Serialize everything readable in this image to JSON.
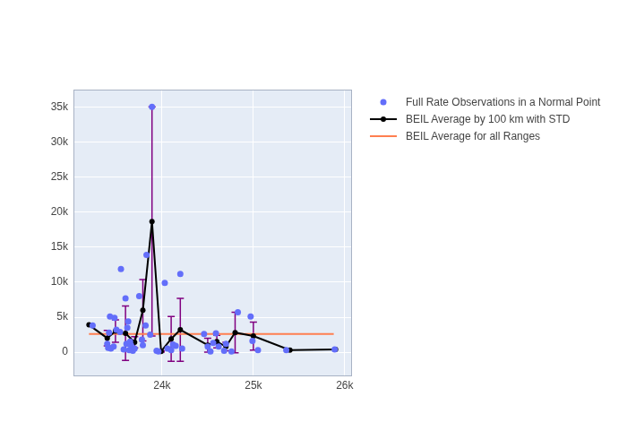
{
  "chart_data": {
    "type": "scatter",
    "xlim": [
      23030,
      26080
    ],
    "ylim": [
      -3460,
      37560
    ],
    "xticks": [
      {
        "value": 24000,
        "label": "24k"
      },
      {
        "value": 25000,
        "label": "25k"
      },
      {
        "value": 26000,
        "label": "26k"
      }
    ],
    "yticks": [
      0,
      {
        "value": 5000,
        "label": "5k"
      },
      {
        "value": 10000,
        "label": "10k"
      },
      {
        "value": 15000,
        "label": "15k"
      },
      {
        "value": 20000,
        "label": "20k"
      },
      {
        "value": 25000,
        "label": "25k"
      },
      {
        "value": 30000,
        "label": "30k"
      },
      {
        "value": 35000,
        "label": "35k"
      }
    ],
    "grid": true,
    "legend": "right",
    "series": [
      {
        "name": "Full Rate Observations in a Normal Point",
        "type": "scatter",
        "marker": "circle",
        "color": "#636efa",
        "x": [
          23240,
          23400,
          23410,
          23420,
          23430,
          23440,
          23480,
          23470,
          23500,
          23540,
          23550,
          23580,
          23600,
          23610,
          23620,
          23630,
          23640,
          23650,
          23660,
          23680,
          23700,
          23750,
          23780,
          23790,
          23820,
          23830,
          23870,
          23890,
          23940,
          23960,
          24030,
          24060,
          24100,
          24120,
          24150,
          24200,
          24220,
          24460,
          24500,
          24530,
          24560,
          24590,
          24620,
          24680,
          24700,
          24760,
          24830,
          24970,
          24990,
          25050,
          25360,
          25890
        ],
        "values": [
          3800,
          1200,
          600,
          2800,
          5100,
          500,
          4900,
          800,
          3200,
          2900,
          11900,
          400,
          7700,
          1200,
          3500,
          4400,
          300,
          1500,
          1000,
          200,
          500,
          8000,
          1800,
          1000,
          3800,
          13900,
          2500,
          35100,
          200,
          100,
          9900,
          500,
          300,
          1100,
          900,
          11200,
          500,
          2600,
          800,
          100,
          1300,
          2700,
          800,
          200,
          1200,
          100,
          5700,
          5100,
          1600,
          300,
          300,
          400
        ]
      },
      {
        "name": "BEIL Average by 100 km with STD",
        "type": "line",
        "marker": "circle",
        "line_style": "solid",
        "color": "#000000",
        "x": [
          23200,
          23400,
          23490,
          23600,
          23700,
          23790,
          23890,
          23990,
          24100,
          24200,
          24500,
          24600,
          24700,
          24800,
          25000,
          25400,
          25900
        ],
        "values": [
          3900,
          2000,
          3000,
          2700,
          1400,
          6000,
          18700,
          100,
          1900,
          3200,
          1000,
          1500,
          800,
          2800,
          2300,
          300,
          400
        ],
        "error": [
          0,
          1100,
          1600,
          3900,
          800,
          4400,
          16400,
          100,
          3200,
          4500,
          1000,
          900,
          600,
          2900,
          2000,
          0,
          0
        ]
      },
      {
        "name": "BEIL Average for all Ranges",
        "type": "line",
        "marker": "none",
        "line_style": "solid",
        "color": "coral",
        "x": [
          23200,
          25880
        ],
        "values": [
          2600,
          2600
        ]
      }
    ]
  }
}
